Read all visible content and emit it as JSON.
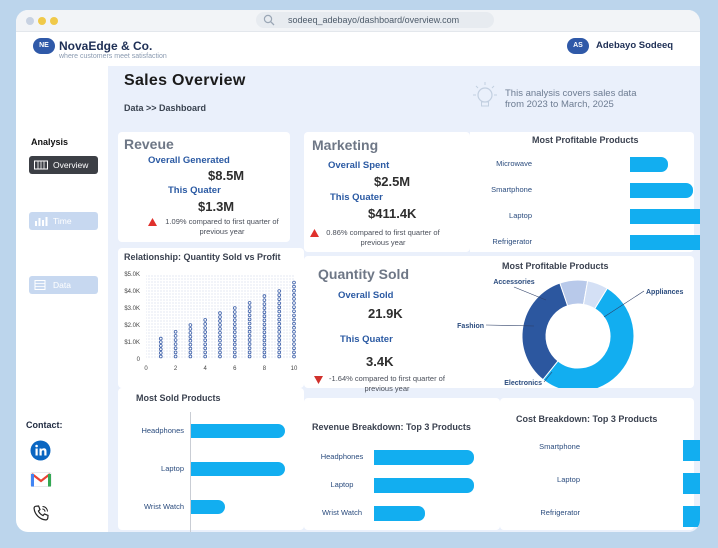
{
  "browser": {
    "url": "sodeeq_adebayo/dashboard/overview.com"
  },
  "brand": {
    "badge": "NE",
    "name": "NovaEdge & Co.",
    "tagline": "where customers meet satisfaction"
  },
  "user": {
    "badge": "AS",
    "name": "Adebayo Sodeeq"
  },
  "sidebar": {
    "section": "Analysis",
    "items": [
      {
        "label": "Overview",
        "active": true
      },
      {
        "label": "Time Series",
        "active": false
      },
      {
        "label": "Data",
        "active": false
      }
    ],
    "contact_label": "Contact:"
  },
  "page": {
    "title": "Sales Overview",
    "breadcrumb": "Data >> Dashboard",
    "note_line1": "This analysis covers sales data",
    "note_line2": "from 2023 to March, 2025"
  },
  "revenue": {
    "title": "Reveue",
    "overall_label": "Overall Generated",
    "overall_value": "$8.5M",
    "quarter_label": "This Quater",
    "quarter_value": "$1.3M",
    "change_line1": "1.09% compared to first quarter of",
    "change_line2": "previous year"
  },
  "marketing": {
    "title": "Marketing",
    "overall_label": "Overall Spent",
    "overall_value": "$2.5M",
    "quarter_label": "This Quater",
    "quarter_value": "$411.4K",
    "change_line1": "0.86% compared to first quarter of",
    "change_line2": "previous year"
  },
  "quantity": {
    "title": "Quantity Sold",
    "overall_label": "Overall Sold",
    "overall_value": "21.9K",
    "quarter_label": "This Quater",
    "quarter_value": "3.4K",
    "change_line1": "-1.64% compared to first quarter of",
    "change_line2": "previous year"
  },
  "colors": {
    "accent": "#12aef0",
    "navy": "#2b5aa3",
    "up_arrow": "#e0312c",
    "down_arrow": "#d0312c"
  },
  "icons": {
    "note": "bulb-icon",
    "overview": "grid-icon",
    "time_series": "bar-chart-icon",
    "data": "table-icon",
    "linkedin": "linkedin-icon",
    "gmail": "gmail-icon",
    "phone": "phone-icon",
    "search": "search-icon"
  },
  "chart_data": [
    {
      "type": "scatter",
      "title": "Relationship: Quantity Sold vs Profit",
      "yticks": [
        "$5.0K",
        "$4.0K",
        "$3.0K",
        "$2.0K",
        "$1.0K",
        "0"
      ],
      "xticks": [
        "0",
        "2",
        "4",
        "6",
        "8",
        "10"
      ],
      "xlim": [
        0,
        10
      ],
      "ylim": [
        0,
        5000
      ],
      "x": [
        1,
        2,
        3,
        4,
        5,
        6,
        7,
        8,
        9,
        10
      ],
      "y_max": [
        1200,
        1600,
        2000,
        2300,
        2700,
        3000,
        3300,
        3700,
        4000,
        4500
      ]
    },
    {
      "type": "bar",
      "title": "Most Profitable Products",
      "categories": [
        "Microwave",
        "Smartphone",
        "Laptop",
        "Refrigerator"
      ],
      "values": [
        38,
        63,
        102,
        148
      ]
    },
    {
      "type": "pie",
      "title": "Most Profitable Products",
      "categories": [
        "Appliances",
        "Electronics",
        "Fashion",
        "Accessories"
      ],
      "values": [
        52,
        34,
        8,
        6
      ]
    },
    {
      "type": "bar",
      "title": "Most Sold Products",
      "categories": [
        "Headphones",
        "Laptop",
        "Wrist Watch"
      ],
      "values": [
        95,
        95,
        35
      ]
    },
    {
      "type": "bar",
      "title": "Revenue Breakdown: Top 3 Products",
      "categories": [
        "Headphones",
        "Laptop",
        "Wrist Watch"
      ],
      "values": [
        128,
        128,
        65
      ]
    },
    {
      "type": "bar",
      "title": "Cost Breakdown: Top 3 Products",
      "categories": [
        "Smartphone",
        "Laptop",
        "Refrigerator"
      ],
      "values": [
        38,
        62,
        92
      ]
    }
  ]
}
